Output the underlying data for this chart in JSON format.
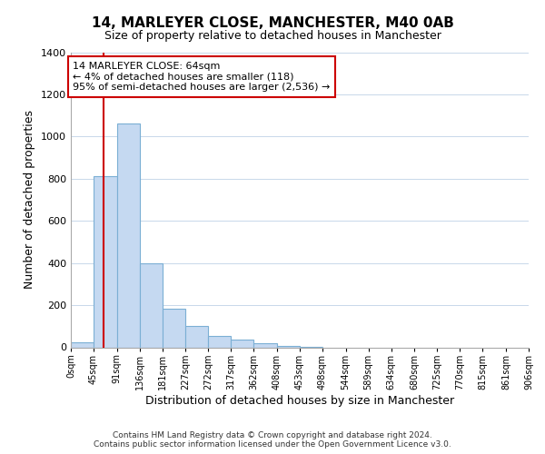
{
  "title": "14, MARLEYER CLOSE, MANCHESTER, M40 0AB",
  "subtitle": "Size of property relative to detached houses in Manchester",
  "xlabel": "Distribution of detached houses by size in Manchester",
  "ylabel": "Number of detached properties",
  "bar_color": "#c5d9f1",
  "bar_edge_color": "#7bafd4",
  "bar_heights": [
    25,
    810,
    1060,
    400,
    185,
    100,
    55,
    35,
    20,
    8,
    2,
    0,
    0,
    0,
    0,
    0,
    0,
    0,
    0,
    0
  ],
  "bin_edges": [
    0,
    45,
    91,
    136,
    181,
    227,
    272,
    317,
    362,
    408,
    453,
    498,
    544,
    589,
    634,
    680,
    725,
    770,
    815,
    861,
    906
  ],
  "tick_labels": [
    "0sqm",
    "45sqm",
    "91sqm",
    "136sqm",
    "181sqm",
    "227sqm",
    "272sqm",
    "317sqm",
    "362sqm",
    "408sqm",
    "453sqm",
    "498sqm",
    "544sqm",
    "589sqm",
    "634sqm",
    "680sqm",
    "725sqm",
    "770sqm",
    "815sqm",
    "861sqm",
    "906sqm"
  ],
  "ylim": [
    0,
    1400
  ],
  "yticks": [
    0,
    200,
    400,
    600,
    800,
    1000,
    1200,
    1400
  ],
  "property_size": 64,
  "vline_color": "#cc0000",
  "annotation_line1": "14 MARLEYER CLOSE: 64sqm",
  "annotation_line2": "← 4% of detached houses are smaller (118)",
  "annotation_line3": "95% of semi-detached houses are larger (2,536) →",
  "annotation_box_color": "#ffffff",
  "annotation_box_edge": "#cc0000",
  "footer_line1": "Contains HM Land Registry data © Crown copyright and database right 2024.",
  "footer_line2": "Contains public sector information licensed under the Open Government Licence v3.0.",
  "background_color": "#ffffff",
  "grid_color": "#c8d8ea",
  "title_fontsize": 11,
  "subtitle_fontsize": 9,
  "annotation_fontsize": 8,
  "xlabel_fontsize": 9,
  "ylabel_fontsize": 9,
  "footer_fontsize": 6.5
}
